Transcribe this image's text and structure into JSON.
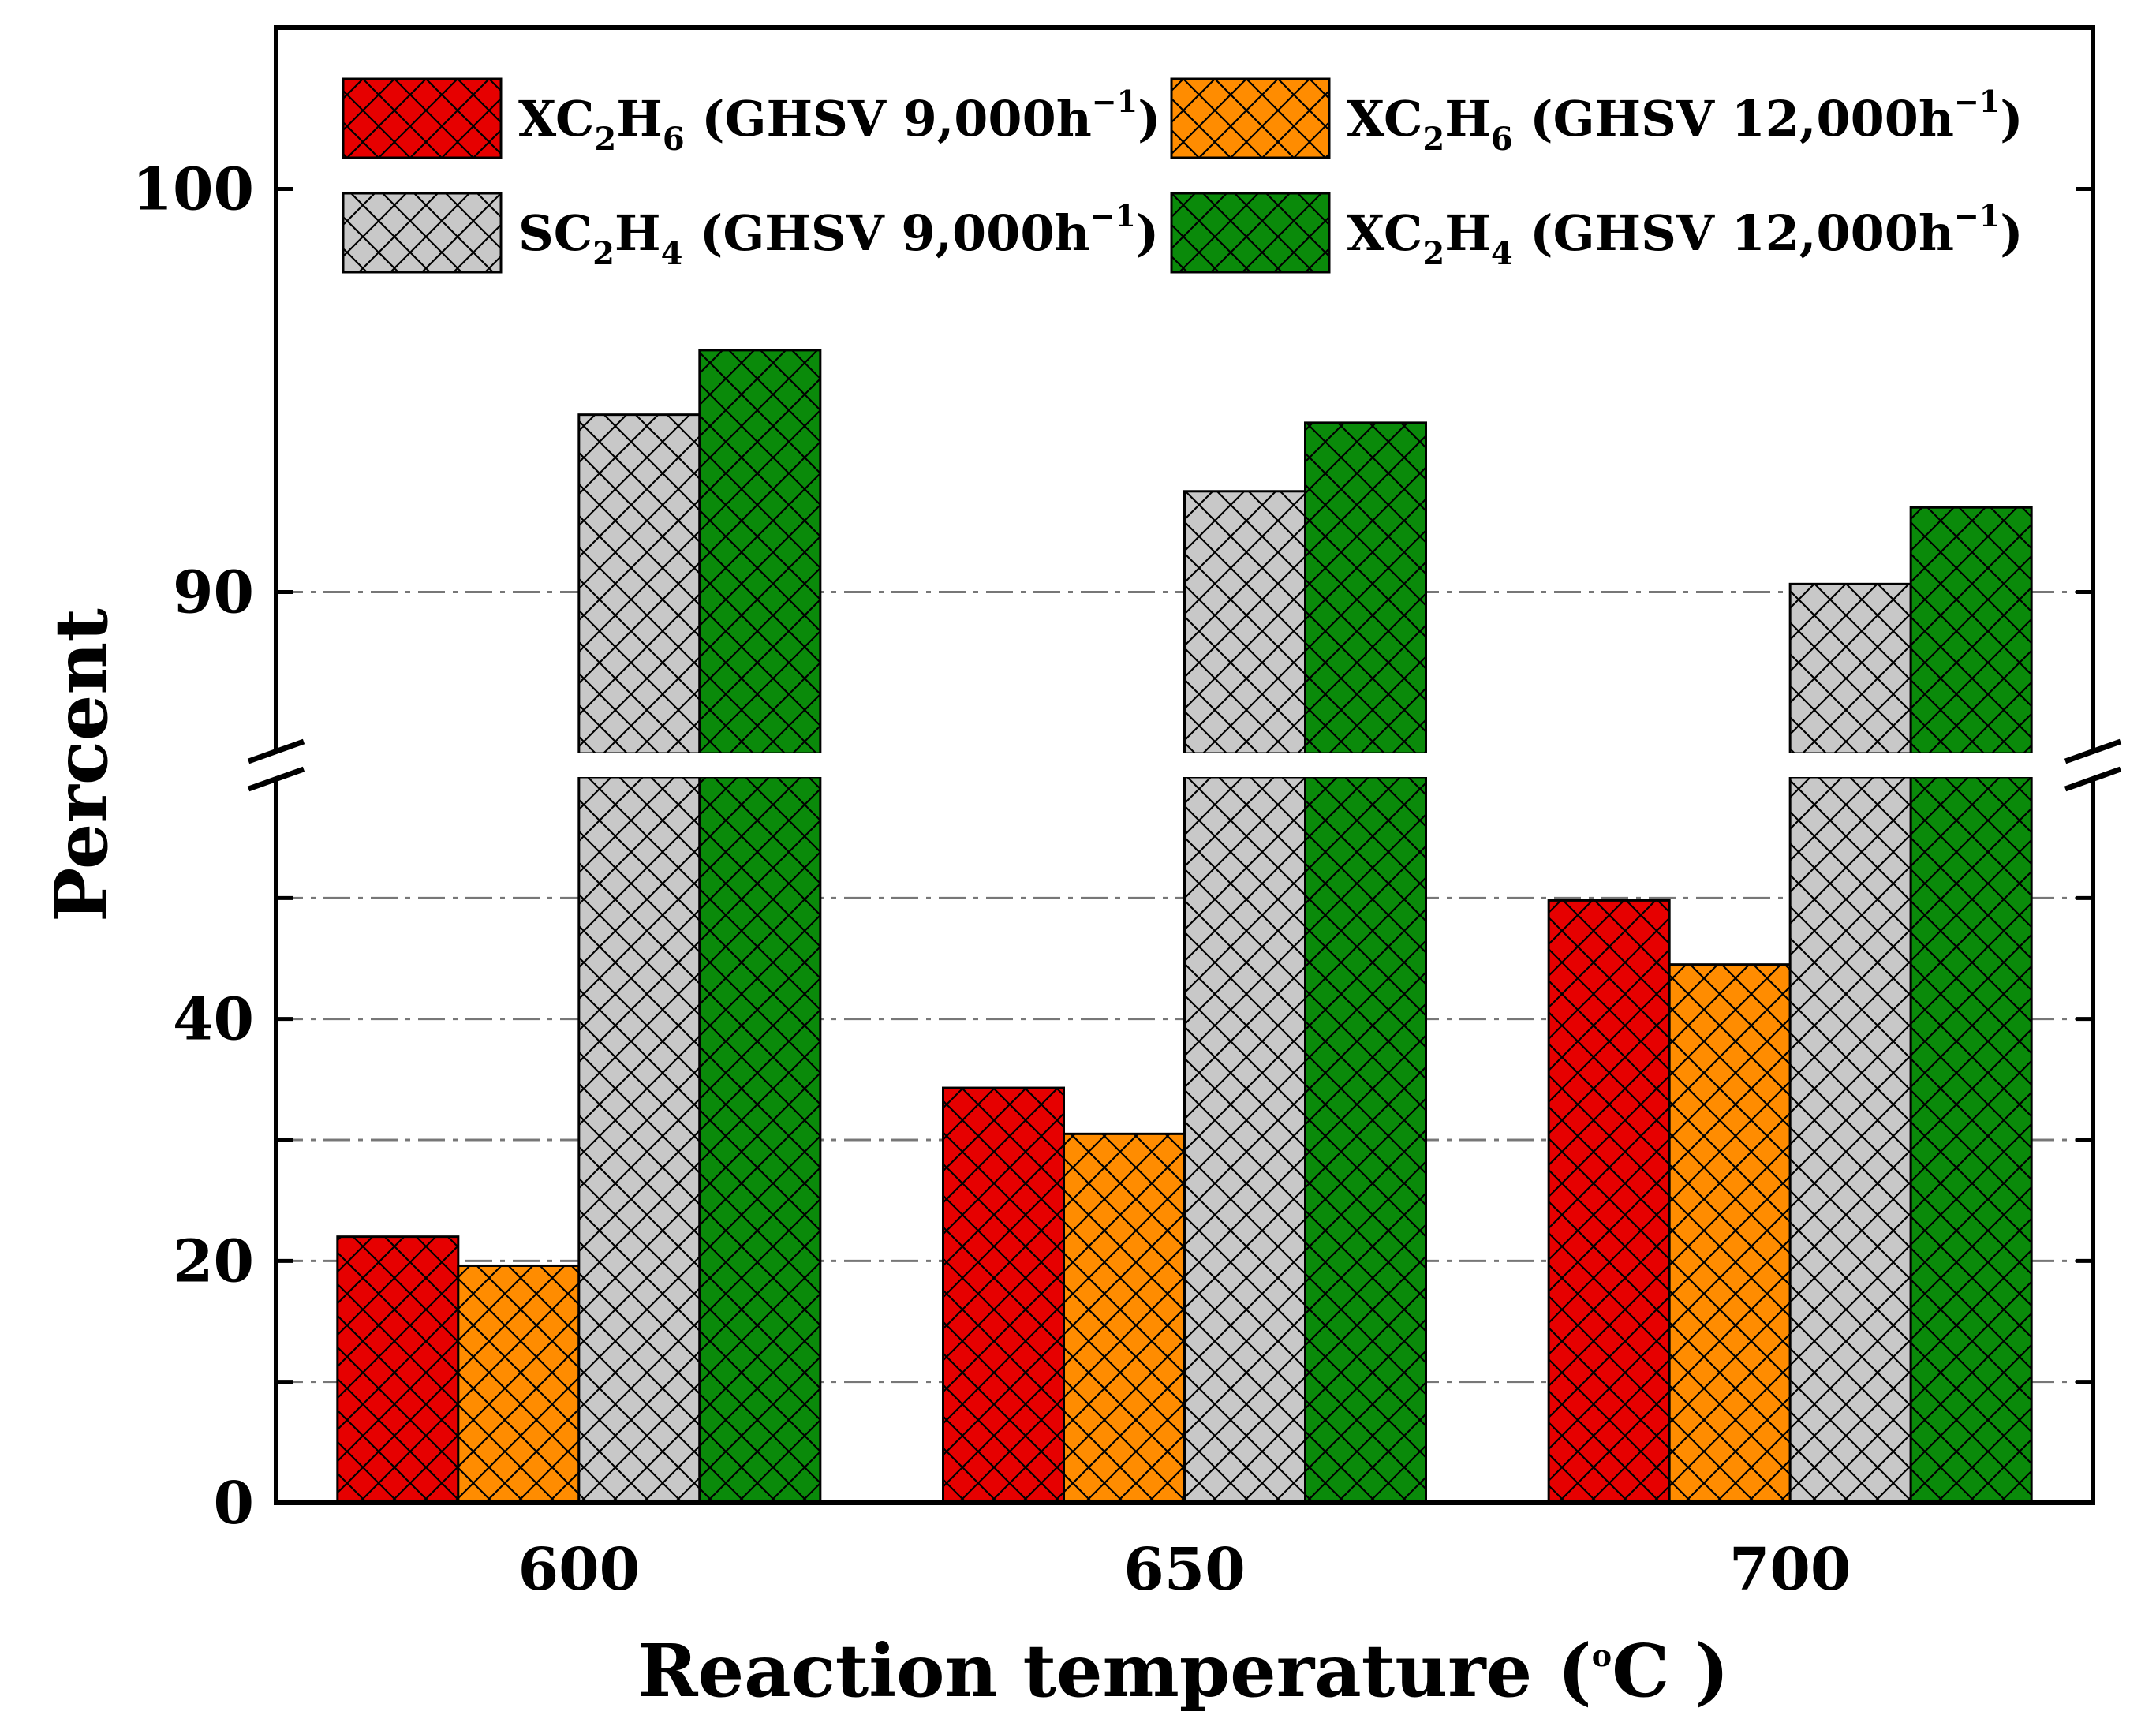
{
  "chart_data": {
    "type": "bar",
    "broken_axis": true,
    "ylabel": "Percent",
    "xlabel": {
      "main": "Reaction temperature (",
      "degree": "o",
      "unit": "C )"
    },
    "categories": [
      "600",
      "650",
      "700"
    ],
    "y_lower": {
      "range": [
        0,
        60
      ],
      "ticks": [
        0,
        10,
        20,
        30,
        40,
        50
      ],
      "tick_labels": {
        "0": "0",
        "20": "20",
        "40": "40"
      }
    },
    "y_upper": {
      "range": [
        86,
        104
      ],
      "ticks": [
        90,
        100
      ],
      "tick_labels": {
        "90": "90",
        "100": "100"
      }
    },
    "series": [
      {
        "name": "XC2H6 (GHSV 9,000h-1)",
        "prefix": "XC",
        "sub1": "2",
        "mid": "H",
        "sub2": "6",
        "ghsv": " (GHSV 9,000h",
        "exp": "−1",
        "close": ")",
        "color": "#e60000",
        "values": [
          22,
          34.3,
          49.8
        ]
      },
      {
        "name": "XC2H6 (GHSV 12,000h-1)",
        "prefix": "XC",
        "sub1": "2",
        "mid": "H",
        "sub2": "6",
        "ghsv": " (GHSV 12,000h",
        "exp": "−1",
        "close": ")",
        "color": "#ff8c00",
        "values": [
          19.6,
          30.5,
          44.5
        ]
      },
      {
        "name": "SC2H4 (GHSV 9,000h-1)",
        "prefix": "SC",
        "sub1": "2",
        "mid": "H",
        "sub2": "4",
        "ghsv": " (GHSV 9,000h",
        "exp": "−1",
        "close": ")",
        "color": "#c8c8c8",
        "values": [
          94.4,
          92.5,
          90.2
        ]
      },
      {
        "name": "XC2H4 (GHSV 12,000h-1)",
        "prefix": "XC",
        "sub1": "2",
        "mid": "H",
        "sub2": "4",
        "ghsv": " (GHSV 12,000h",
        "exp": "−1",
        "close": ")",
        "color": "#0a8a0a",
        "values": [
          96.0,
          94.2,
          92.1
        ]
      }
    ],
    "grid": true,
    "legend": "top"
  }
}
